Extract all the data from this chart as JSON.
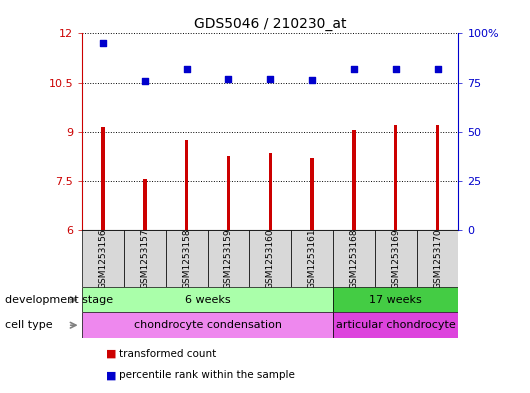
{
  "title": "GDS5046 / 210230_at",
  "samples": [
    "GSM1253156",
    "GSM1253157",
    "GSM1253158",
    "GSM1253159",
    "GSM1253160",
    "GSM1253161",
    "GSM1253168",
    "GSM1253169",
    "GSM1253170"
  ],
  "bar_values": [
    9.15,
    7.55,
    8.75,
    8.25,
    8.35,
    8.2,
    9.05,
    9.2,
    9.2
  ],
  "scatter_values": [
    11.7,
    10.55,
    10.9,
    10.6,
    10.62,
    10.58,
    10.9,
    10.92,
    10.92
  ],
  "ylim_left": [
    6,
    12
  ],
  "yticks_left": [
    6,
    7.5,
    9,
    10.5,
    12
  ],
  "ytick_labels_left": [
    "6",
    "7.5",
    "9",
    "10.5",
    "12"
  ],
  "ylim_right": [
    0,
    100
  ],
  "yticks_right": [
    0,
    25,
    50,
    75,
    100
  ],
  "ytick_labels_right": [
    "0",
    "25",
    "50",
    "75",
    "100%"
  ],
  "bar_color": "#cc0000",
  "scatter_color": "#0000cc",
  "bar_width": 0.08,
  "development_stage_groups": [
    {
      "label": "6 weeks",
      "start": 0,
      "end": 6,
      "color": "#aaffaa"
    },
    {
      "label": "17 weeks",
      "start": 6,
      "end": 9,
      "color": "#44cc44"
    }
  ],
  "cell_type_groups": [
    {
      "label": "chondrocyte condensation",
      "start": 0,
      "end": 6,
      "color": "#ee88ee"
    },
    {
      "label": "articular chondrocyte",
      "start": 6,
      "end": 9,
      "color": "#dd44dd"
    }
  ],
  "left_labels": [
    "development stage",
    "cell type"
  ],
  "legend_items": [
    {
      "color": "#cc0000",
      "label": "transformed count"
    },
    {
      "color": "#0000cc",
      "label": "percentile rank within the sample"
    }
  ],
  "grid_color": "black",
  "grid_linestyle": ":"
}
